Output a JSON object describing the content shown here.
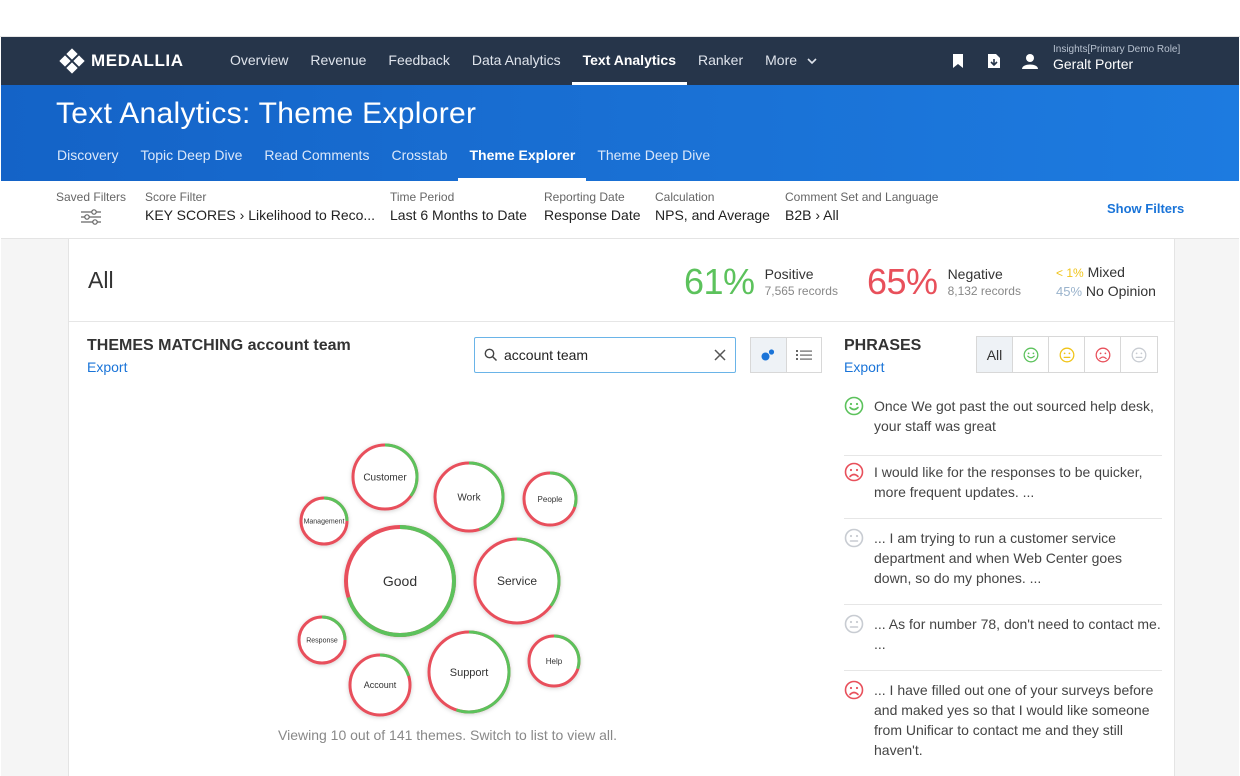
{
  "app": {
    "brand": "MEDALLIA"
  },
  "topnav": {
    "items": [
      {
        "label": "Overview"
      },
      {
        "label": "Revenue"
      },
      {
        "label": "Feedback"
      },
      {
        "label": "Data Analytics"
      },
      {
        "label": "Text Analytics"
      },
      {
        "label": "Ranker"
      },
      {
        "label": "More"
      }
    ],
    "active": "Text Analytics",
    "icons": [
      "bookmark-icon",
      "export-icon",
      "user-icon"
    ],
    "user": {
      "role": "Insights[Primary Demo Role]",
      "name": "Geralt Porter"
    }
  },
  "banner": {
    "title": "Text Analytics: Theme Explorer",
    "tabs": [
      {
        "label": "Discovery"
      },
      {
        "label": "Topic Deep Dive"
      },
      {
        "label": "Read Comments"
      },
      {
        "label": "Crosstab"
      },
      {
        "label": "Theme Explorer"
      },
      {
        "label": "Theme Deep Dive"
      }
    ],
    "active": "Theme Explorer"
  },
  "filters": {
    "saved_label": "Saved Filters",
    "items": [
      {
        "label": "Score Filter",
        "value": "KEY SCORES › Likelihood to Reco..."
      },
      {
        "label": "Time Period",
        "value": "Last 6 Months to Date"
      },
      {
        "label": "Reporting Date",
        "value": "Response Date"
      },
      {
        "label": "Calculation",
        "value": "NPS, and Average"
      },
      {
        "label": "Comment Set and Language",
        "value": "B2B › All"
      }
    ],
    "show_filters": "Show Filters"
  },
  "summary": {
    "title": "All",
    "positive": {
      "pct": "61%",
      "label": "Positive",
      "records": "7,565 records"
    },
    "negative": {
      "pct": "65%",
      "label": "Negative",
      "records": "8,132 records"
    },
    "mixed": {
      "pct": "< 1%",
      "label": "Mixed"
    },
    "no_opinion": {
      "pct": "45%",
      "label": "No Opinion"
    }
  },
  "themes": {
    "title": "THEMES MATCHING account team",
    "export": "Export",
    "search": {
      "value": "account team"
    },
    "bubbles": [
      {
        "label": "Customer",
        "positive": 0.35
      },
      {
        "label": "Work",
        "positive": 0.45
      },
      {
        "label": "People",
        "positive": 0.3
      },
      {
        "label": "Management",
        "positive": 0.25
      },
      {
        "label": "Good",
        "positive": 0.7
      },
      {
        "label": "Service",
        "positive": 0.35
      },
      {
        "label": "Response",
        "positive": 0.25
      },
      {
        "label": "Account",
        "positive": 0.2
      },
      {
        "label": "Support",
        "positive": 0.55
      },
      {
        "label": "Help",
        "positive": 0.3
      }
    ],
    "viewing": "Viewing 10 out of 141 themes. Switch to list to view all."
  },
  "phrases": {
    "title": "PHRASES",
    "export": "Export",
    "filter_all": "All",
    "colors": {
      "positive": "#5cc25c",
      "negative": "#e8505b",
      "mixed": "#f0c419",
      "neutral": "#c8ccd2"
    },
    "items": [
      {
        "sentiment": "positive",
        "text": "Once We got past the out sourced help desk, your staff was great"
      },
      {
        "sentiment": "negative",
        "text": "I would like for the responses to be quicker, more frequent updates. ..."
      },
      {
        "sentiment": "neutral",
        "text": "... I am trying to run a customer service department and when Web Center goes down, so do my phones. ..."
      },
      {
        "sentiment": "neutral",
        "text": "... As for number 78, don't need to contact me. ..."
      },
      {
        "sentiment": "negative",
        "text": "... I have filled out one of your surveys before and maked yes so that I would like someone from Unificar to contact me and they still haven't."
      }
    ]
  }
}
